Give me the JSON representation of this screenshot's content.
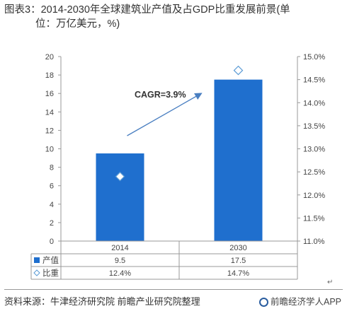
{
  "title_line1": "图表3：2014-2030年全球建筑业产值及占GDP比重发展前景(单",
  "title_line2": "位：万亿美元，%)",
  "chart_data": {
    "type": "bar",
    "categories": [
      "2014",
      "2030"
    ],
    "series": [
      {
        "name": "产值",
        "values": [
          9.5,
          17.5
        ],
        "axis": "left",
        "color": "#1f6fce",
        "marker": "bar"
      },
      {
        "name": "比重",
        "values": [
          12.4,
          14.7
        ],
        "axis": "right",
        "color": "#5b9bd5",
        "marker": "diamond"
      }
    ],
    "table_values": {
      "产值": [
        "9.5",
        "17.5"
      ],
      "比重": [
        "12.4%",
        "14.7%"
      ]
    },
    "ylim_left": [
      0,
      20
    ],
    "yticks_left": [
      "0",
      "2",
      "4",
      "6",
      "8",
      "10",
      "12",
      "14",
      "16",
      "18",
      "20"
    ],
    "ylim_right": [
      11.0,
      15.0
    ],
    "yticks_right": [
      "11.0%",
      "11.5%",
      "12.0%",
      "12.5%",
      "13.0%",
      "13.5%",
      "14.0%",
      "14.5%",
      "15.0%"
    ],
    "annotation": "CAGR=3.9%",
    "grid": false
  },
  "source_text": "资料来源：牛津经济研究院 前瞻产业研究院整理",
  "logo_text": "前瞻经济学人APP",
  "return_mark": "↵",
  "colors": {
    "bar": "#1f6fce",
    "diamond_edge": "#5b9bd5",
    "arrow": "#4a7fc1",
    "axis": "#999999"
  }
}
